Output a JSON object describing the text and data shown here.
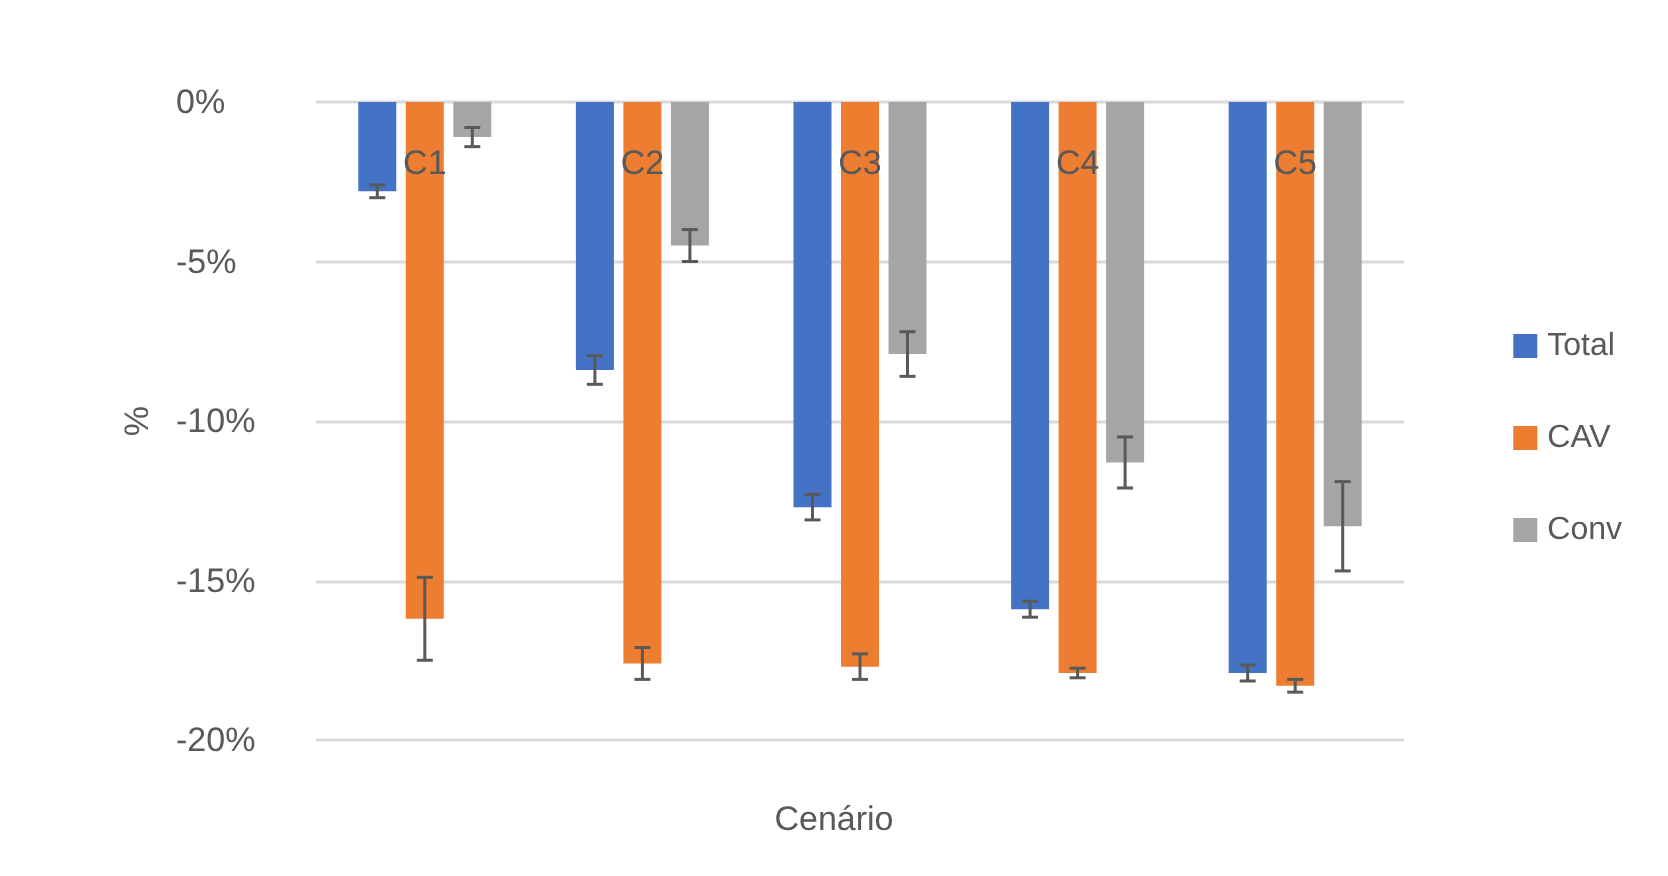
{
  "chart_data": {
    "type": "bar",
    "xlabel": "Cenário",
    "ylabel": "%",
    "categories": [
      "C1",
      "C2",
      "C3",
      "C4",
      "C5"
    ],
    "series": [
      {
        "name": "Total",
        "color": "#4472c4",
        "values": [
          -2.8,
          -8.4,
          -12.7,
          -15.9,
          -17.9
        ],
        "errors": [
          0.2,
          0.45,
          0.4,
          0.25,
          0.25
        ]
      },
      {
        "name": "CAV",
        "color": "#ed7d31",
        "values": [
          -16.2,
          -17.6,
          -17.7,
          -17.9,
          -18.3
        ],
        "errors": [
          1.3,
          0.5,
          0.4,
          0.15,
          0.2
        ]
      },
      {
        "name": "Conv",
        "color": "#a5a5a5",
        "values": [
          -1.1,
          -4.5,
          -7.9,
          -11.3,
          -13.3
        ],
        "errors": [
          0.3,
          0.5,
          0.7,
          0.8,
          1.4
        ]
      }
    ],
    "ylim": [
      -20,
      0
    ],
    "yticks": [
      {
        "value": 0,
        "label": "0%"
      },
      {
        "value": -5,
        "label": "-5%"
      },
      {
        "value": -10,
        "label": "-10%"
      },
      {
        "value": -15,
        "label": "-15%"
      },
      {
        "value": -20,
        "label": "-20%"
      }
    ],
    "grid": "y",
    "legend": "right"
  }
}
